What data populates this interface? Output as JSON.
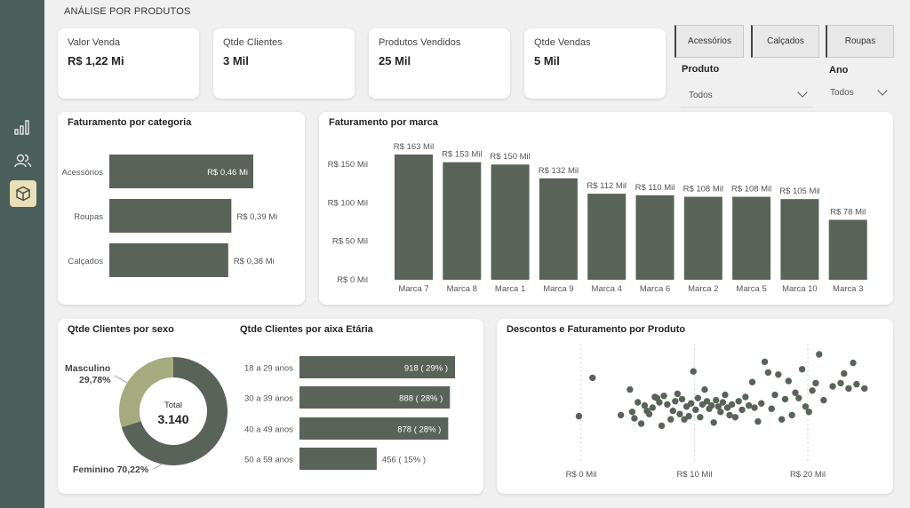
{
  "page_title": "ANÁLISE POR PRODUTOS",
  "kpis": [
    {
      "label": "Valor Venda",
      "value": "R$ 1,22 Mi"
    },
    {
      "label": "Qtde Clientes",
      "value": "3 Mil"
    },
    {
      "label": "Produtos Vendidos",
      "value": "25 Mil"
    },
    {
      "label": "Qtde Vendas",
      "value": "5 Mil"
    }
  ],
  "category_buttons": [
    "Acessórios",
    "Calçados",
    "Roupas"
  ],
  "filters": {
    "produto_label": "Produto",
    "produto_value": "Todos",
    "ano_label": "Ano",
    "ano_value": "Todos"
  },
  "colors": {
    "bar": "#59635a",
    "donut_light": "#a6aa7f",
    "sidebar": "#4a5e5a",
    "active_nav": "#e9dfb8"
  },
  "nav_icons": [
    "bar-chart-icon",
    "users-icon",
    "box-icon"
  ],
  "chart_data": [
    {
      "type": "bar",
      "orientation": "horizontal",
      "title": "Faturamento por categoria",
      "categories": [
        "Acessórios",
        "Roupas",
        "Calçados"
      ],
      "values": [
        0.46,
        0.39,
        0.38
      ],
      "labels": [
        "R$ 0,46 Mi",
        "R$ 0,39 Mi",
        "R$ 0,38 Mi"
      ]
    },
    {
      "type": "bar",
      "title": "Faturamento por marca",
      "categories": [
        "Marca 7",
        "Marca 8",
        "Marca 1",
        "Marca 9",
        "Marca 4",
        "Marca 6",
        "Marca 2",
        "Marca 5",
        "Marca 10",
        "Marca 3"
      ],
      "values": [
        163,
        153,
        150,
        132,
        112,
        110,
        108,
        108,
        105,
        78
      ],
      "labels": [
        "R$ 163 Mil",
        "R$ 153 Mil",
        "R$ 150 Mil",
        "R$ 132 Mil",
        "R$ 112 Mil",
        "R$ 110 Mil",
        "R$ 108 Mil",
        "R$ 108 Mil",
        "R$ 105 Mil",
        "R$ 78 Mil"
      ],
      "y_ticks": [
        "R$ 0 Mil",
        "R$ 50 Mil",
        "R$ 100 Mil",
        "R$ 150 Mil"
      ],
      "ylim": [
        0,
        165
      ]
    },
    {
      "type": "pie",
      "title": "Qtde Clientes por sexo",
      "slices": [
        {
          "name": "Masculino",
          "pct": 29.78,
          "pct_label": "29,78%"
        },
        {
          "name": "Feminino",
          "pct": 70.22,
          "pct_label": "70,22%"
        }
      ],
      "center_label": "Total",
      "center_value": "3.140",
      "feminino_label": "Feminino 70,22%"
    },
    {
      "type": "bar",
      "orientation": "horizontal",
      "title": "Qtde Clientes por aixa Etária",
      "categories": [
        "18 a 29 anos",
        "30 a 39 anos",
        "40 a 49 anos",
        "50 a 59 anos"
      ],
      "values": [
        918,
        888,
        878,
        456
      ],
      "labels": [
        "918  ( 29% )",
        "888  ( 28% )",
        "878  ( 28% )",
        "456  ( 15% )"
      ]
    },
    {
      "type": "scatter",
      "title": "Descontos e Faturamento por Produto",
      "x_ticks": [
        "R$ 0 Mil",
        "R$ 10 Mil",
        "R$ 20 Mil"
      ],
      "xlim": [
        -2,
        26
      ],
      "ylim": [
        0,
        10
      ],
      "points": [
        [
          -0.2,
          4.2
        ],
        [
          1.0,
          7.8
        ],
        [
          3.5,
          4.3
        ],
        [
          4.3,
          6.7
        ],
        [
          4.5,
          4.6
        ],
        [
          4.7,
          4.0
        ],
        [
          5.0,
          5.5
        ],
        [
          5.3,
          3.5
        ],
        [
          5.6,
          5.2
        ],
        [
          5.8,
          4.7
        ],
        [
          6.0,
          4.4
        ],
        [
          6.3,
          5.0
        ],
        [
          6.5,
          6.0
        ],
        [
          6.7,
          5.9
        ],
        [
          6.9,
          5.5
        ],
        [
          7.1,
          3.3
        ],
        [
          7.3,
          6.1
        ],
        [
          7.6,
          5.3
        ],
        [
          7.9,
          3.9
        ],
        [
          8.1,
          4.7
        ],
        [
          8.3,
          5.6
        ],
        [
          8.5,
          6.3
        ],
        [
          8.7,
          4.4
        ],
        [
          8.9,
          5.8
        ],
        [
          9.1,
          3.9
        ],
        [
          9.3,
          5.1
        ],
        [
          9.5,
          4.2
        ],
        [
          9.7,
          5.4
        ],
        [
          9.9,
          8.4
        ],
        [
          10.1,
          4.8
        ],
        [
          10.3,
          5.9
        ],
        [
          10.5,
          4.1
        ],
        [
          10.7,
          5.3
        ],
        [
          10.9,
          6.7
        ],
        [
          11.1,
          5.6
        ],
        [
          11.3,
          4.9
        ],
        [
          11.5,
          5.2
        ],
        [
          11.7,
          3.6
        ],
        [
          11.9,
          5.7
        ],
        [
          12.1,
          5.1
        ],
        [
          12.3,
          4.6
        ],
        [
          12.5,
          5.5
        ],
        [
          12.7,
          6.2
        ],
        [
          12.9,
          5.0
        ],
        [
          13.1,
          4.3
        ],
        [
          13.3,
          5.3
        ],
        [
          13.6,
          4.1
        ],
        [
          13.9,
          5.6
        ],
        [
          14.2,
          4.8
        ],
        [
          14.5,
          6.0
        ],
        [
          14.8,
          5.2
        ],
        [
          15.1,
          7.4
        ],
        [
          15.3,
          5.0
        ],
        [
          15.6,
          3.7
        ],
        [
          15.9,
          5.4
        ],
        [
          16.2,
          9.3
        ],
        [
          16.5,
          8.3
        ],
        [
          16.8,
          4.9
        ],
        [
          17.1,
          6.2
        ],
        [
          17.4,
          8.1
        ],
        [
          17.7,
          3.9
        ],
        [
          18.0,
          5.8
        ],
        [
          18.3,
          7.5
        ],
        [
          18.6,
          4.3
        ],
        [
          18.9,
          6.4
        ],
        [
          19.2,
          5.9
        ],
        [
          19.5,
          8.6
        ],
        [
          19.8,
          5.1
        ],
        [
          20.1,
          4.6
        ],
        [
          20.4,
          6.6
        ],
        [
          20.7,
          7.3
        ],
        [
          21.0,
          10.0
        ],
        [
          21.4,
          5.7
        ],
        [
          22.2,
          7.0
        ],
        [
          22.9,
          7.3
        ],
        [
          23.2,
          8.2
        ],
        [
          23.6,
          6.8
        ],
        [
          24.0,
          9.2
        ],
        [
          24.3,
          7.2
        ],
        [
          25.0,
          6.8
        ]
      ]
    }
  ]
}
